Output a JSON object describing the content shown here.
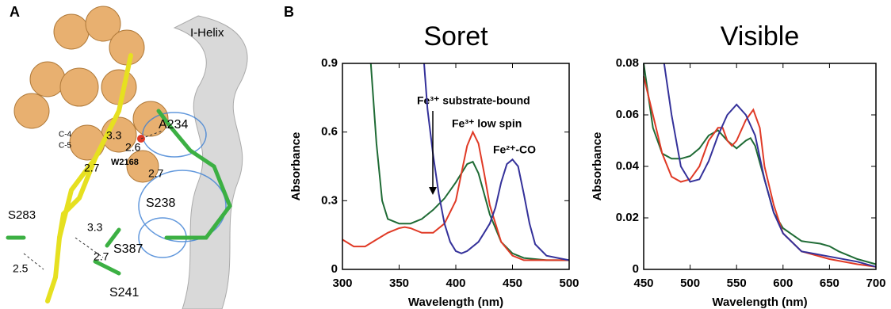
{
  "panels": {
    "a": "A",
    "b": "B"
  },
  "structure": {
    "labels": [
      "I-Helix",
      "A234",
      "C-4",
      "C-5",
      "3.3",
      "2.6",
      "W2168",
      "2.7",
      "2.7",
      "S238",
      "S283",
      "3.3",
      "S387",
      "2.7",
      "2.5",
      "S241"
    ]
  },
  "chart_data": [
    {
      "type": "line",
      "title": "Soret",
      "xlabel": "Wavelength (nm)",
      "ylabel": "Absorbance",
      "xlim": [
        300,
        500
      ],
      "ylim": [
        0,
        0.9
      ],
      "xticks": [
        300,
        350,
        400,
        450,
        500
      ],
      "yticks": [
        0,
        0.3,
        0.6,
        0.9
      ],
      "series": [
        {
          "name": "Fe³⁺ substrate-bound",
          "color": "#1f6b35",
          "x": [
            325,
            330,
            335,
            340,
            350,
            360,
            370,
            380,
            390,
            400,
            405,
            410,
            415,
            420,
            425,
            430,
            440,
            450,
            460,
            480,
            500
          ],
          "values": [
            0.9,
            0.55,
            0.3,
            0.22,
            0.2,
            0.2,
            0.22,
            0.26,
            0.31,
            0.38,
            0.42,
            0.46,
            0.47,
            0.42,
            0.33,
            0.24,
            0.12,
            0.07,
            0.05,
            0.04,
            0.04
          ]
        },
        {
          "name": "Fe³⁺ low spin",
          "color": "#e03a26",
          "x": [
            300,
            310,
            320,
            330,
            340,
            350,
            355,
            360,
            370,
            380,
            390,
            400,
            405,
            410,
            415,
            420,
            425,
            430,
            440,
            450,
            460,
            480,
            500
          ],
          "values": [
            0.13,
            0.1,
            0.1,
            0.13,
            0.16,
            0.18,
            0.185,
            0.18,
            0.16,
            0.16,
            0.2,
            0.3,
            0.42,
            0.54,
            0.6,
            0.55,
            0.42,
            0.28,
            0.12,
            0.06,
            0.04,
            0.04,
            0.04
          ]
        },
        {
          "name": "Fe²⁺-CO",
          "color": "#34319a",
          "x": [
            372,
            375,
            380,
            385,
            390,
            395,
            400,
            405,
            410,
            420,
            425,
            430,
            435,
            440,
            445,
            450,
            455,
            460,
            465,
            470,
            480,
            490,
            500
          ],
          "values": [
            0.9,
            0.7,
            0.5,
            0.33,
            0.2,
            0.12,
            0.08,
            0.07,
            0.08,
            0.12,
            0.16,
            0.2,
            0.27,
            0.38,
            0.46,
            0.48,
            0.45,
            0.33,
            0.2,
            0.11,
            0.06,
            0.05,
            0.04
          ]
        }
      ]
    },
    {
      "type": "line",
      "title": "Visible",
      "xlabel": "Wavelength (nm)",
      "ylabel": "Absorbance",
      "xlim": [
        450,
        700
      ],
      "ylim": [
        0,
        0.08
      ],
      "xticks": [
        450,
        500,
        550,
        600,
        650,
        700
      ],
      "yticks": [
        0,
        0.02,
        0.04,
        0.06,
        0.08
      ],
      "series": [
        {
          "color": "#1f6b35",
          "x": [
            450,
            460,
            470,
            480,
            490,
            500,
            510,
            520,
            530,
            540,
            550,
            560,
            565,
            570,
            580,
            590,
            600,
            620,
            640,
            650,
            660,
            680,
            700
          ],
          "values": [
            0.08,
            0.055,
            0.045,
            0.043,
            0.043,
            0.044,
            0.047,
            0.052,
            0.054,
            0.05,
            0.047,
            0.05,
            0.051,
            0.048,
            0.035,
            0.022,
            0.016,
            0.011,
            0.01,
            0.009,
            0.007,
            0.004,
            0.002
          ]
        },
        {
          "color": "#e03a26",
          "x": [
            450,
            460,
            470,
            480,
            490,
            500,
            510,
            520,
            530,
            535,
            540,
            545,
            550,
            560,
            568,
            575,
            580,
            590,
            600,
            620,
            650,
            680,
            700
          ],
          "values": [
            0.075,
            0.06,
            0.045,
            0.036,
            0.034,
            0.035,
            0.04,
            0.05,
            0.055,
            0.055,
            0.05,
            0.048,
            0.05,
            0.058,
            0.062,
            0.055,
            0.04,
            0.025,
            0.014,
            0.007,
            0.004,
            0.002,
            0.001
          ]
        },
        {
          "color": "#34319a",
          "x": [
            472,
            480,
            490,
            500,
            510,
            520,
            530,
            540,
            550,
            560,
            570,
            580,
            590,
            600,
            620,
            650,
            680,
            700
          ],
          "values": [
            0.08,
            0.06,
            0.04,
            0.034,
            0.035,
            0.042,
            0.052,
            0.06,
            0.064,
            0.06,
            0.052,
            0.035,
            0.022,
            0.014,
            0.007,
            0.005,
            0.003,
            0.001
          ]
        }
      ]
    }
  ]
}
